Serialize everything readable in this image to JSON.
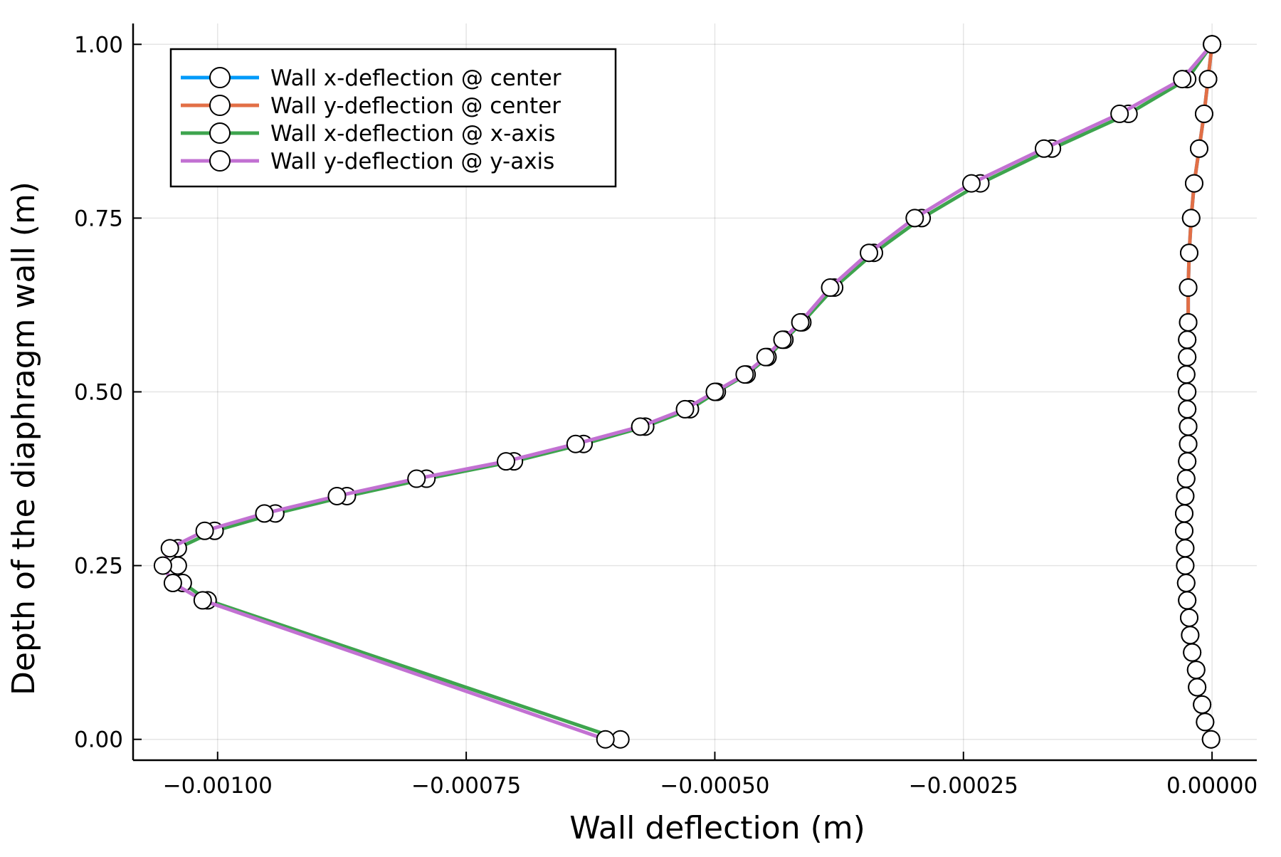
{
  "chart_data": {
    "type": "line",
    "xlabel": "Wall deflection (m)",
    "ylabel": "Depth of the diaphragm wall (m)",
    "xlim": [
      -0.001085,
      4.5e-05
    ],
    "ylim": [
      1.03,
      -0.03
    ],
    "y_inverted": true,
    "xticks": [
      -0.001,
      -0.00075,
      -0.0005,
      -0.00025,
      0.0
    ],
    "xtick_labels": [
      "−0.00100",
      "−0.00075",
      "−0.00050",
      "−0.00025",
      "0.00000"
    ],
    "yticks": [
      0.0,
      0.25,
      0.5,
      0.75,
      1.0
    ],
    "ytick_labels": [
      "0.00",
      "0.25",
      "0.50",
      "0.75",
      "1.00"
    ],
    "grid": true,
    "legend_position": "top-left",
    "marker": "circle",
    "series": [
      {
        "name": "Wall x-deflection @ center",
        "color": "#009AFA",
        "x": [
          -1e-06,
          -7e-06,
          -1e-05,
          -1.5e-05,
          -1.6e-05,
          -2e-05,
          -2.2e-05,
          -2.3e-05,
          -2.5e-05,
          -2.6e-05,
          -2.7e-05,
          -2.7e-05,
          -2.8e-05,
          -2.8e-05,
          -2.7e-05,
          -2.6e-05,
          -2.5e-05,
          -2.4e-05,
          -2.4e-05,
          -2.5e-05,
          -2.5e-05,
          -2.6e-05,
          -2.5e-05,
          -2.5e-05,
          -2.4e-05,
          -2.4e-05,
          -2.3e-05,
          -2.1e-05,
          -1.8e-05,
          -1.3e-05,
          -8e-06,
          -4e-06,
          0.0
        ],
        "y": [
          0.0,
          0.025,
          0.05,
          0.075,
          0.1,
          0.125,
          0.15,
          0.175,
          0.2,
          0.225,
          0.25,
          0.275,
          0.3,
          0.325,
          0.35,
          0.375,
          0.4,
          0.425,
          0.45,
          0.475,
          0.5,
          0.525,
          0.55,
          0.575,
          0.6,
          0.65,
          0.7,
          0.75,
          0.8,
          0.85,
          0.9,
          0.95,
          1.0
        ]
      },
      {
        "name": "Wall y-deflection @ center",
        "color": "#E26F46",
        "x": [
          -1e-06,
          -7e-06,
          -1e-05,
          -1.5e-05,
          -1.6e-05,
          -2e-05,
          -2.2e-05,
          -2.3e-05,
          -2.5e-05,
          -2.6e-05,
          -2.7e-05,
          -2.7e-05,
          -2.8e-05,
          -2.8e-05,
          -2.7e-05,
          -2.6e-05,
          -2.5e-05,
          -2.4e-05,
          -2.4e-05,
          -2.5e-05,
          -2.5e-05,
          -2.6e-05,
          -2.5e-05,
          -2.5e-05,
          -2.4e-05,
          -2.4e-05,
          -2.3e-05,
          -2.1e-05,
          -1.8e-05,
          -1.3e-05,
          -8e-06,
          -4e-06,
          0.0
        ],
        "y": [
          0.0,
          0.025,
          0.05,
          0.075,
          0.1,
          0.125,
          0.15,
          0.175,
          0.2,
          0.225,
          0.25,
          0.275,
          0.3,
          0.325,
          0.35,
          0.375,
          0.4,
          0.425,
          0.45,
          0.475,
          0.5,
          0.525,
          0.55,
          0.575,
          0.6,
          0.65,
          0.7,
          0.75,
          0.8,
          0.85,
          0.9,
          0.95,
          1.0
        ]
      },
      {
        "name": "Wall x-deflection @ x-axis",
        "color": "#3EA44E",
        "x": [
          -0.000595,
          -0.00101,
          -0.001035,
          -0.00104,
          -0.00104,
          -0.001003,
          -0.000942,
          -0.00087,
          -0.00079,
          -0.000702,
          -0.000632,
          -0.00057,
          -0.000525,
          -0.000498,
          -0.000468,
          -0.000447,
          -0.00043,
          -0.000412,
          -0.00038,
          -0.00034,
          -0.000292,
          -0.000233,
          -0.000161,
          -8.4e-05,
          -2.5e-05,
          0.0
        ],
        "y": [
          0.0,
          0.2,
          0.225,
          0.25,
          0.275,
          0.3,
          0.325,
          0.35,
          0.375,
          0.4,
          0.425,
          0.45,
          0.475,
          0.5,
          0.525,
          0.55,
          0.575,
          0.6,
          0.65,
          0.7,
          0.75,
          0.8,
          0.85,
          0.9,
          0.95,
          1.0
        ]
      },
      {
        "name": "Wall y-deflection @ y-axis",
        "color": "#C271D2",
        "x": [
          -0.00061,
          -0.001015,
          -0.001045,
          -0.001055,
          -0.001048,
          -0.001013,
          -0.000953,
          -0.00088,
          -0.0008,
          -0.00071,
          -0.00064,
          -0.000575,
          -0.00053,
          -0.0005,
          -0.00047,
          -0.000449,
          -0.000432,
          -0.000414,
          -0.000384,
          -0.000345,
          -0.000299,
          -0.000242,
          -0.000169,
          -9.3e-05,
          -3e-05,
          0.0
        ],
        "y": [
          0.0,
          0.2,
          0.225,
          0.25,
          0.275,
          0.3,
          0.325,
          0.35,
          0.375,
          0.4,
          0.425,
          0.45,
          0.475,
          0.5,
          0.525,
          0.55,
          0.575,
          0.6,
          0.65,
          0.7,
          0.75,
          0.8,
          0.85,
          0.9,
          0.95,
          1.0
        ]
      }
    ]
  }
}
